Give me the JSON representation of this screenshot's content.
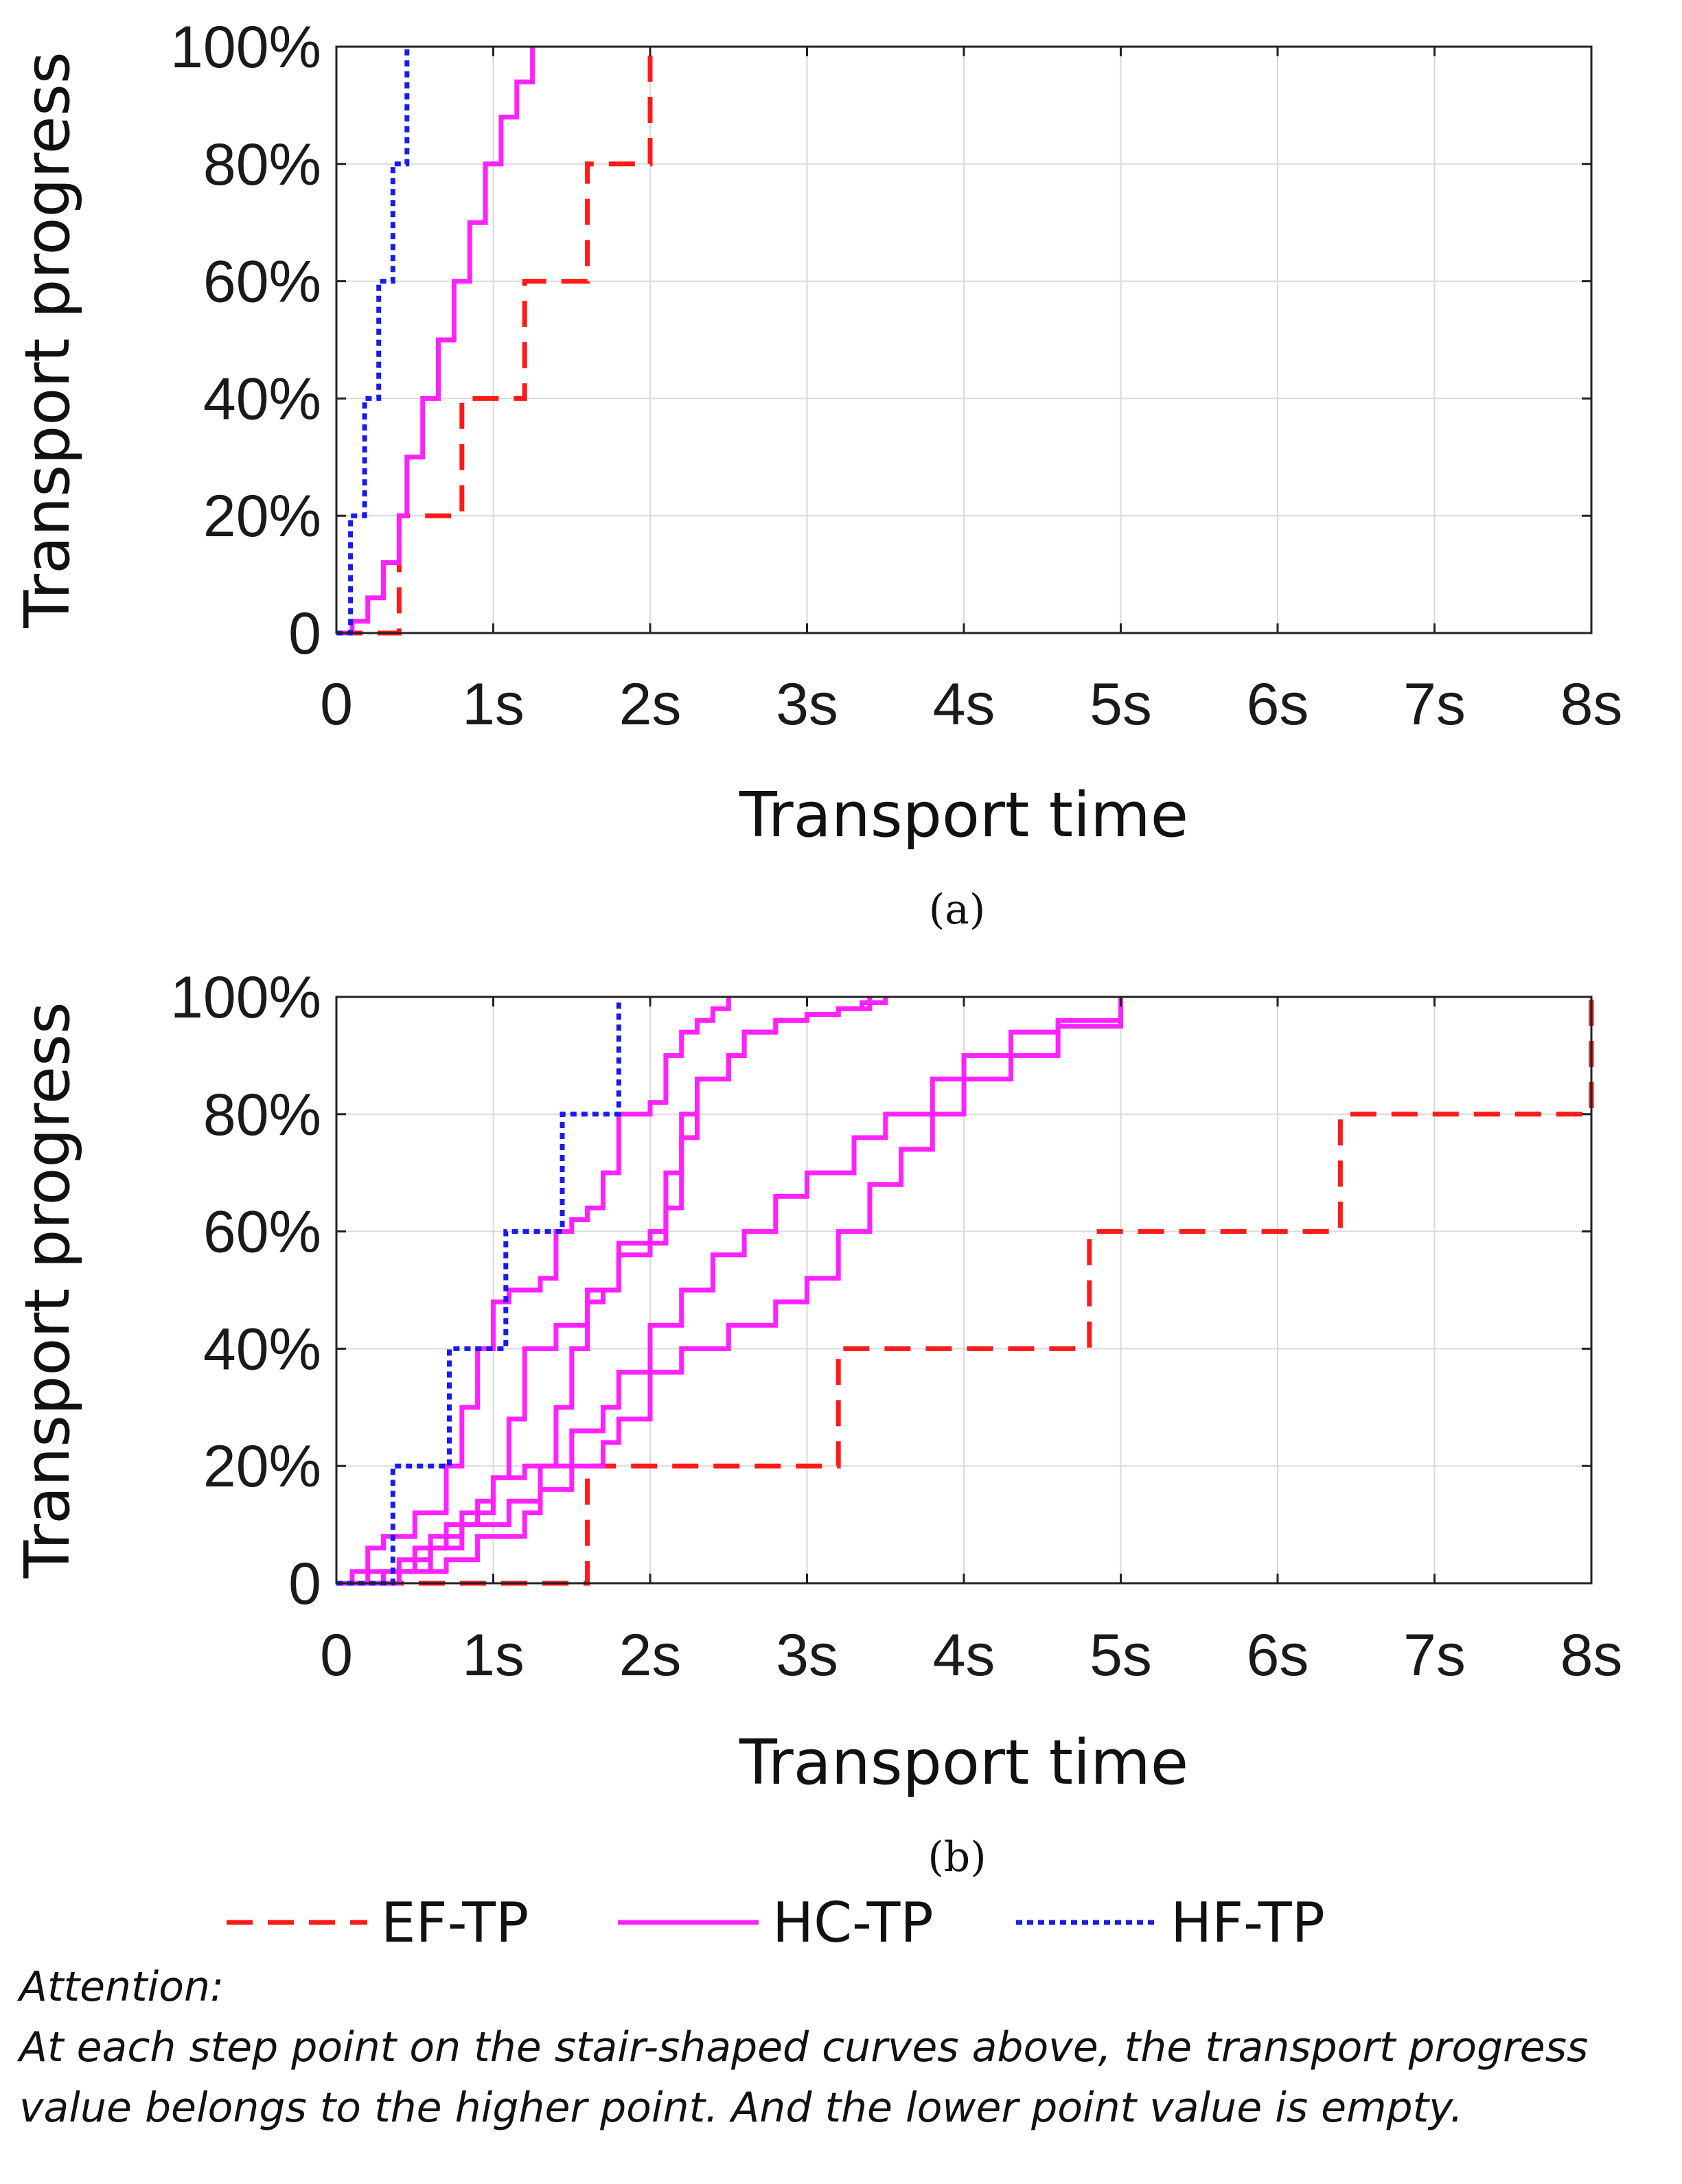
{
  "colors": {
    "ef": "#ff1a1a",
    "hc": "#ff22ff",
    "hf": "#1a1aee",
    "grid": "#d9d9d9",
    "axis": "#222222"
  },
  "chart_data": [
    {
      "type": "line",
      "subplot": "a",
      "caption": "(a)",
      "xlabel": "Transport time",
      "ylabel": "Transport progress",
      "xlim": [
        0,
        8
      ],
      "ylim": [
        0,
        100
      ],
      "xticks": [
        0,
        1,
        2,
        3,
        4,
        5,
        6,
        7,
        8
      ],
      "xtick_labels": [
        "0",
        "1s",
        "2s",
        "3s",
        "4s",
        "5s",
        "6s",
        "7s",
        "8s"
      ],
      "yticks": [
        0,
        20,
        40,
        60,
        80,
        100
      ],
      "ytick_labels": [
        "0",
        "20%",
        "40%",
        "60%",
        "80%",
        "100%"
      ],
      "grid": true,
      "series": [
        {
          "name": "EF-TP",
          "style": "dashed",
          "color": "#ff1a1a",
          "x": [
            0,
            0.4,
            0.8,
            1.2,
            1.6,
            2.0
          ],
          "y": [
            0,
            20,
            40,
            60,
            80,
            100
          ]
        },
        {
          "name": "HC-TP",
          "style": "solid",
          "color": "#ff22ff",
          "x": [
            0,
            0.1,
            0.2,
            0.3,
            0.4,
            0.45,
            0.55,
            0.65,
            0.75,
            0.85,
            0.95,
            1.05,
            1.15,
            1.25
          ],
          "y": [
            0,
            2,
            6,
            12,
            20,
            30,
            40,
            50,
            60,
            70,
            80,
            88,
            94,
            100
          ]
        },
        {
          "name": "HF-TP",
          "style": "dotted",
          "color": "#1a1aee",
          "x": [
            0,
            0.09,
            0.18,
            0.27,
            0.36,
            0.45
          ],
          "y": [
            0,
            20,
            40,
            60,
            80,
            100
          ]
        }
      ]
    },
    {
      "type": "line",
      "subplot": "b",
      "caption": "(b)",
      "xlabel": "Transport time",
      "ylabel": "Transport progress",
      "xlim": [
        0,
        8
      ],
      "ylim": [
        0,
        100
      ],
      "xticks": [
        0,
        1,
        2,
        3,
        4,
        5,
        6,
        7,
        8
      ],
      "xtick_labels": [
        "0",
        "1s",
        "2s",
        "3s",
        "4s",
        "5s",
        "6s",
        "7s",
        "8s"
      ],
      "yticks": [
        0,
        20,
        40,
        60,
        80,
        100
      ],
      "ytick_labels": [
        "0",
        "20%",
        "40%",
        "60%",
        "80%",
        "100%"
      ],
      "grid": true,
      "series": [
        {
          "name": "EF-TP",
          "style": "dashed",
          "color": "#ff1a1a",
          "x": [
            0,
            1.6,
            3.2,
            4.8,
            6.4,
            8.0
          ],
          "y": [
            0,
            20,
            40,
            60,
            80,
            100
          ]
        },
        {
          "name": "HC-TP",
          "style": "solid",
          "color": "#ff22ff",
          "x": [
            0,
            0.1,
            0.2,
            0.3,
            0.5,
            0.7,
            0.8,
            0.9,
            1.0,
            1.1,
            1.3,
            1.4,
            1.5,
            1.6,
            1.7,
            1.8,
            2.0,
            2.1,
            2.2,
            2.3,
            2.4,
            2.5
          ],
          "y": [
            0,
            2,
            6,
            8,
            12,
            20,
            30,
            40,
            48,
            50,
            52,
            60,
            62,
            64,
            70,
            80,
            82,
            90,
            94,
            96,
            98,
            100
          ]
        },
        {
          "name": "HC-TP",
          "style": "solid",
          "color": "#ff22ff",
          "x": [
            0,
            0.2,
            0.4,
            0.6,
            0.8,
            1.0,
            1.1,
            1.2,
            1.4,
            1.6,
            1.8,
            2.0,
            2.1,
            2.2,
            2.3,
            2.5,
            2.6,
            2.8,
            3.0,
            3.2,
            3.35,
            3.5
          ],
          "y": [
            0,
            2,
            4,
            8,
            12,
            18,
            28,
            40,
            44,
            50,
            58,
            60,
            70,
            80,
            86,
            90,
            94,
            96,
            97,
            98,
            99,
            100
          ]
        },
        {
          "name": "HC-TP",
          "style": "solid",
          "color": "#ff22ff",
          "x": [
            0,
            0.3,
            0.5,
            0.7,
            0.9,
            1.0,
            1.2,
            1.4,
            1.5,
            1.6,
            1.7,
            1.8,
            2.0,
            2.1,
            2.2,
            2.3,
            2.5,
            2.6,
            2.8,
            3.0,
            3.2,
            3.4
          ],
          "y": [
            0,
            2,
            6,
            10,
            14,
            18,
            20,
            30,
            40,
            48,
            50,
            56,
            58,
            64,
            76,
            86,
            90,
            94,
            96,
            97,
            98,
            100
          ]
        },
        {
          "name": "HC-TP",
          "style": "solid",
          "color": "#ff22ff",
          "x": [
            0,
            0.4,
            0.6,
            0.8,
            1.1,
            1.3,
            1.5,
            1.7,
            1.8,
            2.0,
            2.2,
            2.4,
            2.6,
            2.8,
            3.0,
            3.3,
            3.5,
            3.8,
            4.0,
            4.3,
            4.6,
            5.0
          ],
          "y": [
            0,
            2,
            6,
            10,
            14,
            20,
            26,
            30,
            36,
            44,
            50,
            56,
            60,
            66,
            70,
            76,
            80,
            86,
            90,
            94,
            96,
            100
          ]
        },
        {
          "name": "HC-TP",
          "style": "solid",
          "color": "#ff22ff",
          "x": [
            0,
            0.4,
            0.7,
            0.9,
            1.2,
            1.3,
            1.5,
            1.7,
            1.8,
            2.0,
            2.2,
            2.5,
            2.8,
            3.0,
            3.2,
            3.4,
            3.6,
            3.8,
            4.0,
            4.3,
            4.6,
            5.0
          ],
          "y": [
            0,
            2,
            4,
            8,
            12,
            16,
            20,
            24,
            28,
            36,
            40,
            44,
            48,
            52,
            60,
            68,
            74,
            80,
            86,
            90,
            95,
            100
          ]
        },
        {
          "name": "HF-TP",
          "style": "dotted",
          "color": "#1a1aee",
          "x": [
            0,
            0.36,
            0.72,
            1.08,
            1.44,
            1.8
          ],
          "y": [
            0,
            20,
            40,
            60,
            80,
            100
          ]
        }
      ]
    }
  ],
  "legend": {
    "items": [
      {
        "label": "EF-TP",
        "style": "dashed",
        "color": "#ff1a1a"
      },
      {
        "label": "HC-TP",
        "style": "solid",
        "color": "#ff22ff"
      },
      {
        "label": "HF-TP",
        "style": "dotted",
        "color": "#1a1aee"
      }
    ]
  },
  "note": {
    "heading": "Attention:",
    "line1": "At each step point on the stair-shaped curves above, the transport progress",
    "line2": "value belongs to the higher point. And the lower point value is empty."
  }
}
